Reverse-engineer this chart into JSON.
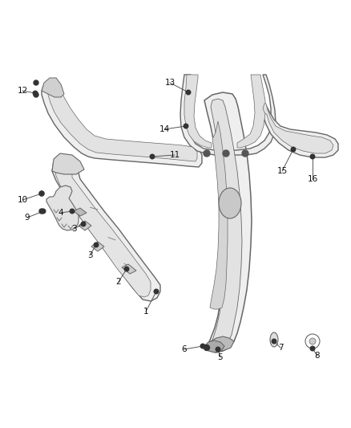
{
  "bg_color": "#ffffff",
  "line_color": "#666666",
  "fill_light": "#f0f0f0",
  "fill_mid": "#e0e0e0",
  "fill_dark": "#c8c8c8",
  "label_color": "#111111",
  "figsize": [
    4.38,
    5.33
  ],
  "dpi": 100
}
